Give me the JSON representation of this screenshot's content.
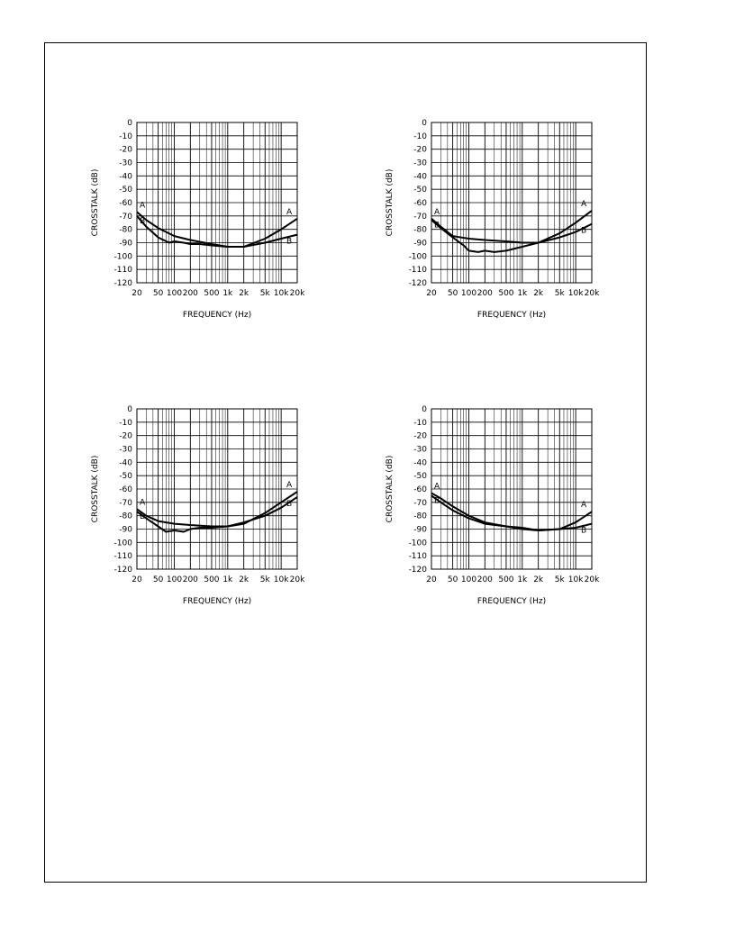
{
  "chart_data": [
    {
      "type": "line",
      "xlabel": "FREQUENCY (Hz)",
      "ylabel": "CROSSTALK (dB)",
      "xscale": "log",
      "xlim": [
        20,
        20000
      ],
      "ylim": [
        -120,
        0
      ],
      "grid": true,
      "x_ticks": [
        20,
        50,
        100,
        200,
        500,
        1000,
        2000,
        5000,
        10000,
        20000
      ],
      "x_tick_labels": [
        "20",
        "50",
        "100",
        "200",
        "500",
        "1k",
        "2k",
        "5k",
        "10k",
        "20k"
      ],
      "y_ticks": [
        0,
        -10,
        -20,
        -30,
        -40,
        -50,
        -60,
        -70,
        -80,
        -90,
        -100,
        -110,
        -120
      ],
      "y_tick_labels": [
        "0",
        "-10",
        "-20",
        "-30",
        "-40",
        "-50",
        "-60",
        "-70",
        "-80",
        "-90",
        "-100",
        "-110",
        "-120"
      ],
      "series": [
        {
          "name": "A",
          "x": [
            20,
            30,
            50,
            100,
            200,
            500,
            1000,
            2000,
            5000,
            10000,
            20000
          ],
          "y": [
            -67,
            -73,
            -79,
            -85,
            -88,
            -91,
            -93,
            -93,
            -87,
            -80,
            -72
          ]
        },
        {
          "name": "B",
          "x": [
            20,
            30,
            50,
            80,
            100,
            150,
            200,
            300,
            500,
            1000,
            2000,
            5000,
            10000,
            20000
          ],
          "y": [
            -70,
            -78,
            -86,
            -90,
            -89,
            -90,
            -91,
            -91,
            -92,
            -93,
            -93,
            -90,
            -87,
            -84
          ]
        }
      ]
    },
    {
      "type": "line",
      "xlabel": "FREQUENCY (Hz)",
      "ylabel": "CROSSTALK (dB)",
      "xscale": "log",
      "xlim": [
        20,
        20000
      ],
      "ylim": [
        -120,
        0
      ],
      "grid": true,
      "x_ticks": [
        20,
        50,
        100,
        200,
        500,
        1000,
        2000,
        5000,
        10000,
        20000
      ],
      "x_tick_labels": [
        "20",
        "50",
        "100",
        "200",
        "500",
        "1k",
        "2k",
        "5k",
        "10k",
        "20k"
      ],
      "y_ticks": [
        0,
        -10,
        -20,
        -30,
        -40,
        -50,
        -60,
        -70,
        -80,
        -90,
        -100,
        -110,
        -120
      ],
      "y_tick_labels": [
        "0",
        "-10",
        "-20",
        "-30",
        "-40",
        "-50",
        "-60",
        "-70",
        "-80",
        "-90",
        "-100",
        "-110",
        "-120"
      ],
      "series": [
        {
          "name": "A",
          "x": [
            20,
            30,
            50,
            100,
            200,
            500,
            1000,
            2000,
            5000,
            10000,
            20000
          ],
          "y": [
            -72,
            -78,
            -85,
            -87,
            -88,
            -89,
            -90,
            -90,
            -83,
            -75,
            -66
          ]
        },
        {
          "name": "B",
          "x": [
            20,
            30,
            50,
            80,
            100,
            150,
            200,
            300,
            500,
            1000,
            2000,
            5000,
            10000,
            20000
          ],
          "y": [
            -73,
            -79,
            -86,
            -92,
            -96,
            -97,
            -96,
            -97,
            -96,
            -93,
            -90,
            -86,
            -82,
            -76
          ]
        }
      ]
    },
    {
      "type": "line",
      "xlabel": "FREQUENCY (Hz)",
      "ylabel": "CROSSTALK (dB)",
      "xscale": "log",
      "xlim": [
        20,
        20000
      ],
      "ylim": [
        -120,
        0
      ],
      "grid": true,
      "x_ticks": [
        20,
        50,
        100,
        200,
        500,
        1000,
        2000,
        5000,
        10000,
        20000
      ],
      "x_tick_labels": [
        "20",
        "50",
        "100",
        "200",
        "500",
        "1k",
        "2k",
        "5k",
        "10k",
        "20k"
      ],
      "y_ticks": [
        0,
        -10,
        -20,
        -30,
        -40,
        -50,
        -60,
        -70,
        -80,
        -90,
        -100,
        -110,
        -120
      ],
      "y_tick_labels": [
        "0",
        "-10",
        "-20",
        "-30",
        "-40",
        "-50",
        "-60",
        "-70",
        "-80",
        "-90",
        "-100",
        "-110",
        "-120"
      ],
      "series": [
        {
          "name": "A",
          "x": [
            20,
            30,
            50,
            100,
            200,
            500,
            1000,
            2000,
            5000,
            10000,
            20000
          ],
          "y": [
            -75,
            -80,
            -84,
            -86,
            -87,
            -88,
            -88,
            -86,
            -78,
            -70,
            -62
          ]
        },
        {
          "name": "B",
          "x": [
            20,
            30,
            50,
            70,
            100,
            150,
            200,
            300,
            500,
            1000,
            2000,
            5000,
            10000,
            20000
          ],
          "y": [
            -77,
            -82,
            -88,
            -92,
            -91,
            -92,
            -90,
            -89,
            -89,
            -88,
            -85,
            -80,
            -74,
            -66
          ]
        }
      ]
    },
    {
      "type": "line",
      "xlabel": "FREQUENCY (Hz)",
      "ylabel": "CROSSTALK (dB)",
      "xscale": "log",
      "xlim": [
        20,
        20000
      ],
      "ylim": [
        -120,
        0
      ],
      "grid": true,
      "x_ticks": [
        20,
        50,
        100,
        200,
        500,
        1000,
        2000,
        5000,
        10000,
        20000
      ],
      "x_tick_labels": [
        "20",
        "50",
        "100",
        "200",
        "500",
        "1k",
        "2k",
        "5k",
        "10k",
        "20k"
      ],
      "y_ticks": [
        0,
        -10,
        -20,
        -30,
        -40,
        -50,
        -60,
        -70,
        -80,
        -90,
        -100,
        -110,
        -120
      ],
      "y_tick_labels": [
        "0",
        "-10",
        "-20",
        "-30",
        "-40",
        "-50",
        "-60",
        "-70",
        "-80",
        "-90",
        "-100",
        "-110",
        "-120"
      ],
      "series": [
        {
          "name": "A",
          "x": [
            20,
            30,
            50,
            100,
            200,
            500,
            1000,
            2000,
            5000,
            10000,
            20000
          ],
          "y": [
            -63,
            -67,
            -73,
            -80,
            -85,
            -88,
            -89,
            -91,
            -90,
            -85,
            -77
          ]
        },
        {
          "name": "B",
          "x": [
            20,
            30,
            50,
            100,
            200,
            500,
            1000,
            2000,
            5000,
            10000,
            20000
          ],
          "y": [
            -65,
            -70,
            -76,
            -82,
            -86,
            -88,
            -90,
            -91,
            -90,
            -89,
            -86
          ]
        }
      ]
    }
  ]
}
